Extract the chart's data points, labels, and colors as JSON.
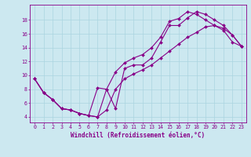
{
  "xlabel": "Windchill (Refroidissement éolien,°C)",
  "background_color": "#cce8f0",
  "line_color": "#880088",
  "markersize": 2.0,
  "linewidth": 0.8,
  "x_hours": [
    0,
    1,
    2,
    3,
    4,
    5,
    6,
    7,
    8,
    9,
    10,
    11,
    12,
    13,
    14,
    15,
    16,
    17,
    18,
    19,
    20,
    21,
    22,
    23
  ],
  "line1": [
    9.5,
    7.5,
    6.5,
    5.2,
    5.0,
    4.5,
    4.2,
    4.0,
    8.0,
    5.2,
    11.0,
    11.5,
    11.5,
    12.5,
    14.8,
    17.2,
    17.2,
    18.3,
    19.2,
    18.8,
    18.0,
    17.2,
    15.8,
    14.2
  ],
  "line2": [
    9.5,
    7.5,
    6.5,
    5.2,
    5.0,
    4.5,
    4.2,
    8.2,
    8.0,
    10.5,
    11.8,
    12.5,
    13.0,
    14.0,
    15.5,
    17.8,
    18.2,
    19.2,
    18.8,
    18.0,
    17.2,
    16.8,
    15.8,
    14.2
  ],
  "line3": [
    9.5,
    7.5,
    6.5,
    5.2,
    5.0,
    4.5,
    4.2,
    4.0,
    5.0,
    8.0,
    9.5,
    10.2,
    10.8,
    11.5,
    12.5,
    13.5,
    14.5,
    15.5,
    16.2,
    17.0,
    17.2,
    16.5,
    14.8,
    14.2
  ],
  "xlim": [
    -0.5,
    23.5
  ],
  "ylim": [
    3.2,
    20.2
  ],
  "yticks": [
    4,
    6,
    8,
    10,
    12,
    14,
    16,
    18
  ],
  "xticks": [
    0,
    1,
    2,
    3,
    4,
    5,
    6,
    7,
    8,
    9,
    10,
    11,
    12,
    13,
    14,
    15,
    16,
    17,
    18,
    19,
    20,
    21,
    22,
    23
  ],
  "grid_color": "#aad4e0",
  "tick_fontsize": 4.8,
  "xlabel_fontsize": 5.5
}
